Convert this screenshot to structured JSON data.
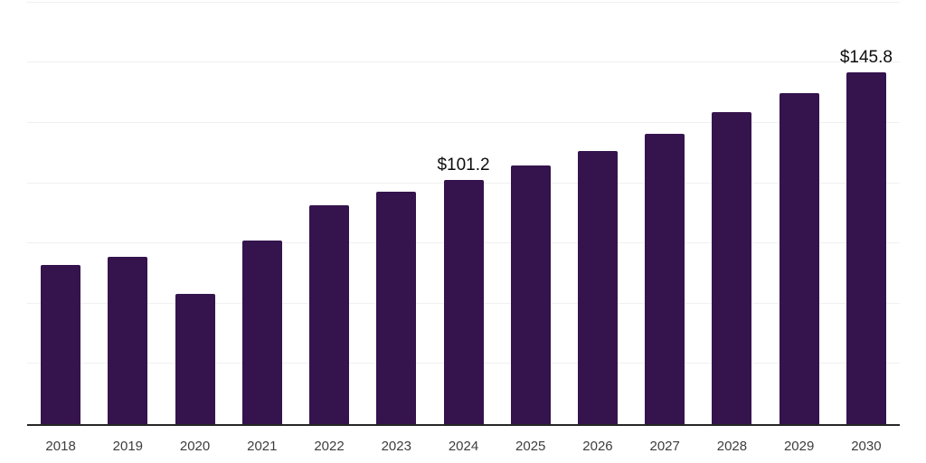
{
  "chart_data": {
    "type": "bar",
    "title": "",
    "xlabel": "",
    "ylabel": "",
    "categories": [
      "2018",
      "2019",
      "2020",
      "2021",
      "2022",
      "2023",
      "2024",
      "2025",
      "2026",
      "2027",
      "2028",
      "2029",
      "2030"
    ],
    "values": [
      66.2,
      69.6,
      54.0,
      76.1,
      91.0,
      96.4,
      101.2,
      107.4,
      113.4,
      120.3,
      129.5,
      137.2,
      145.8
    ],
    "labeled_points": [
      {
        "category": "2024",
        "label": "$101.2"
      },
      {
        "category": "2030",
        "label": "$145.8"
      }
    ],
    "ylim": [
      0,
      176
    ],
    "gridline_values": [
      25,
      50,
      75,
      100,
      125,
      150,
      175
    ],
    "grid": "horizontal-only",
    "legend_position": "none",
    "colors": {
      "bar": "#35134d",
      "axis_line": "#262626",
      "gridline": "#f0f0f0",
      "tick_label": "#3d3d3d",
      "data_label": "#0d0d0d",
      "background": "#ffffff"
    }
  }
}
